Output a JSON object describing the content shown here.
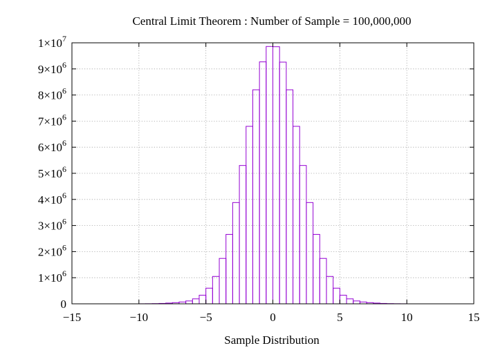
{
  "chart_data": {
    "type": "bar",
    "title": "Central Limit Theorem : Number of Sample = 100,000,000",
    "xlabel": "Sample Distribution",
    "ylabel": "",
    "xlim": [
      -15,
      15
    ],
    "ylim": [
      0,
      10000000
    ],
    "grid": true,
    "bar_color": "#9400d3",
    "bin_width": 0.5,
    "x_ticks": [
      {
        "value": -15,
        "label": "−15"
      },
      {
        "value": -10,
        "label": "−10"
      },
      {
        "value": -5,
        "label": "−5"
      },
      {
        "value": 0,
        "label": "0"
      },
      {
        "value": 5,
        "label": "5"
      },
      {
        "value": 10,
        "label": "10"
      },
      {
        "value": 15,
        "label": "15"
      }
    ],
    "y_ticks": [
      {
        "value": 0,
        "mant": "0",
        "exp": ""
      },
      {
        "value": 1000000,
        "mant": "1×10",
        "exp": "6"
      },
      {
        "value": 2000000,
        "mant": "2×10",
        "exp": "6"
      },
      {
        "value": 3000000,
        "mant": "3×10",
        "exp": "6"
      },
      {
        "value": 4000000,
        "mant": "4×10",
        "exp": "6"
      },
      {
        "value": 5000000,
        "mant": "5×10",
        "exp": "6"
      },
      {
        "value": 6000000,
        "mant": "6×10",
        "exp": "6"
      },
      {
        "value": 7000000,
        "mant": "7×10",
        "exp": "6"
      },
      {
        "value": 8000000,
        "mant": "8×10",
        "exp": "6"
      },
      {
        "value": 9000000,
        "mant": "9×10",
        "exp": "6"
      },
      {
        "value": 10000000,
        "mant": "1×10",
        "exp": "7"
      }
    ],
    "bins": [
      {
        "x": -9.75,
        "y": 2000
      },
      {
        "x": -9.25,
        "y": 4000
      },
      {
        "x": -8.75,
        "y": 8000
      },
      {
        "x": -8.25,
        "y": 15000
      },
      {
        "x": -7.75,
        "y": 28000
      },
      {
        "x": -7.25,
        "y": 45000
      },
      {
        "x": -6.75,
        "y": 70000
      },
      {
        "x": -6.25,
        "y": 110000
      },
      {
        "x": -5.75,
        "y": 190000
      },
      {
        "x": -5.25,
        "y": 330000
      },
      {
        "x": -4.75,
        "y": 600000
      },
      {
        "x": -4.25,
        "y": 1050000
      },
      {
        "x": -3.75,
        "y": 1740000
      },
      {
        "x": -3.25,
        "y": 2660000
      },
      {
        "x": -2.75,
        "y": 3880000
      },
      {
        "x": -2.25,
        "y": 5300000
      },
      {
        "x": -1.75,
        "y": 6800000
      },
      {
        "x": -1.25,
        "y": 8200000
      },
      {
        "x": -0.75,
        "y": 9270000
      },
      {
        "x": -0.25,
        "y": 9860000
      },
      {
        "x": 0.25,
        "y": 9850000
      },
      {
        "x": 0.75,
        "y": 9260000
      },
      {
        "x": 1.25,
        "y": 8200000
      },
      {
        "x": 1.75,
        "y": 6800000
      },
      {
        "x": 2.25,
        "y": 5300000
      },
      {
        "x": 2.75,
        "y": 3880000
      },
      {
        "x": 3.25,
        "y": 2660000
      },
      {
        "x": 3.75,
        "y": 1740000
      },
      {
        "x": 4.25,
        "y": 1050000
      },
      {
        "x": 4.75,
        "y": 600000
      },
      {
        "x": 5.25,
        "y": 330000
      },
      {
        "x": 5.75,
        "y": 190000
      },
      {
        "x": 6.25,
        "y": 110000
      },
      {
        "x": 6.75,
        "y": 70000
      },
      {
        "x": 7.25,
        "y": 45000
      },
      {
        "x": 7.75,
        "y": 28000
      },
      {
        "x": 8.25,
        "y": 15000
      },
      {
        "x": 8.75,
        "y": 8000
      },
      {
        "x": 9.25,
        "y": 4000
      },
      {
        "x": 9.75,
        "y": 2000
      }
    ]
  }
}
